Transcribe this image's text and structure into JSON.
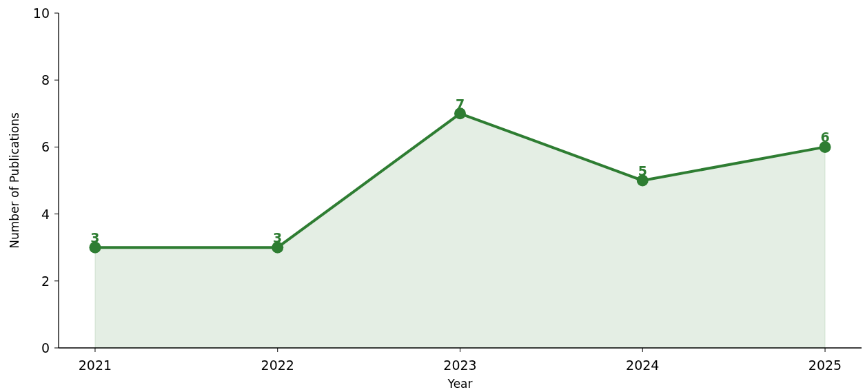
{
  "chart_data": {
    "type": "area",
    "xlabel": "Year",
    "ylabel": "Number of Publications",
    "x": [
      2021,
      2022,
      2023,
      2024,
      2025
    ],
    "series": [
      {
        "color": "#2e7d32",
        "values": [
          3,
          3,
          7,
          5,
          6
        ]
      }
    ],
    "xlim": [
      2020.8,
      2025.2
    ],
    "xticks": [
      2021,
      2022,
      2023,
      2024,
      2025
    ],
    "ylim": [
      0,
      10
    ],
    "yticks": [
      0,
      2,
      4,
      6,
      8,
      10
    ],
    "marker": "circle",
    "line_style": "solid",
    "data_labels": true
  }
}
